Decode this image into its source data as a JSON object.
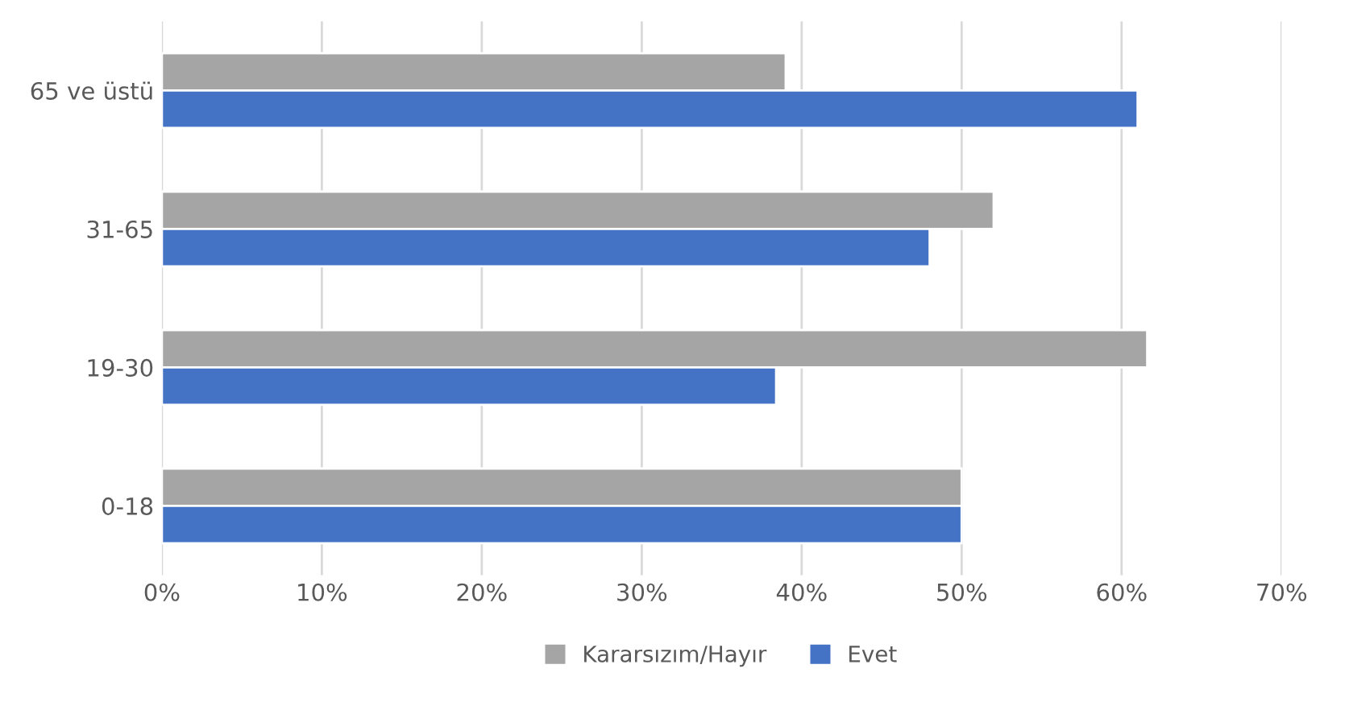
{
  "chart_data": {
    "type": "bar",
    "orientation": "horizontal",
    "categories": [
      "65 ve üstü",
      "31-65",
      "19-30",
      "0-18"
    ],
    "series": [
      {
        "name": "Kararsızım/Hayır",
        "color": "#a5a5a5",
        "values": [
          39,
          52,
          61.6,
          50
        ]
      },
      {
        "name": "Evet",
        "color": "#4472c4",
        "values": [
          61,
          48,
          38.4,
          50
        ]
      }
    ],
    "xlim": [
      0,
      70
    ],
    "xticks": [
      {
        "value": 0,
        "label": "0%"
      },
      {
        "value": 10,
        "label": "10%"
      },
      {
        "value": 20,
        "label": "20%"
      },
      {
        "value": 30,
        "label": "30%"
      },
      {
        "value": 40,
        "label": "40%"
      },
      {
        "value": 50,
        "label": "50%"
      },
      {
        "value": 60,
        "label": "60%"
      },
      {
        "value": 70,
        "label": "70%"
      }
    ],
    "grid": "x",
    "legend": "bottom"
  }
}
